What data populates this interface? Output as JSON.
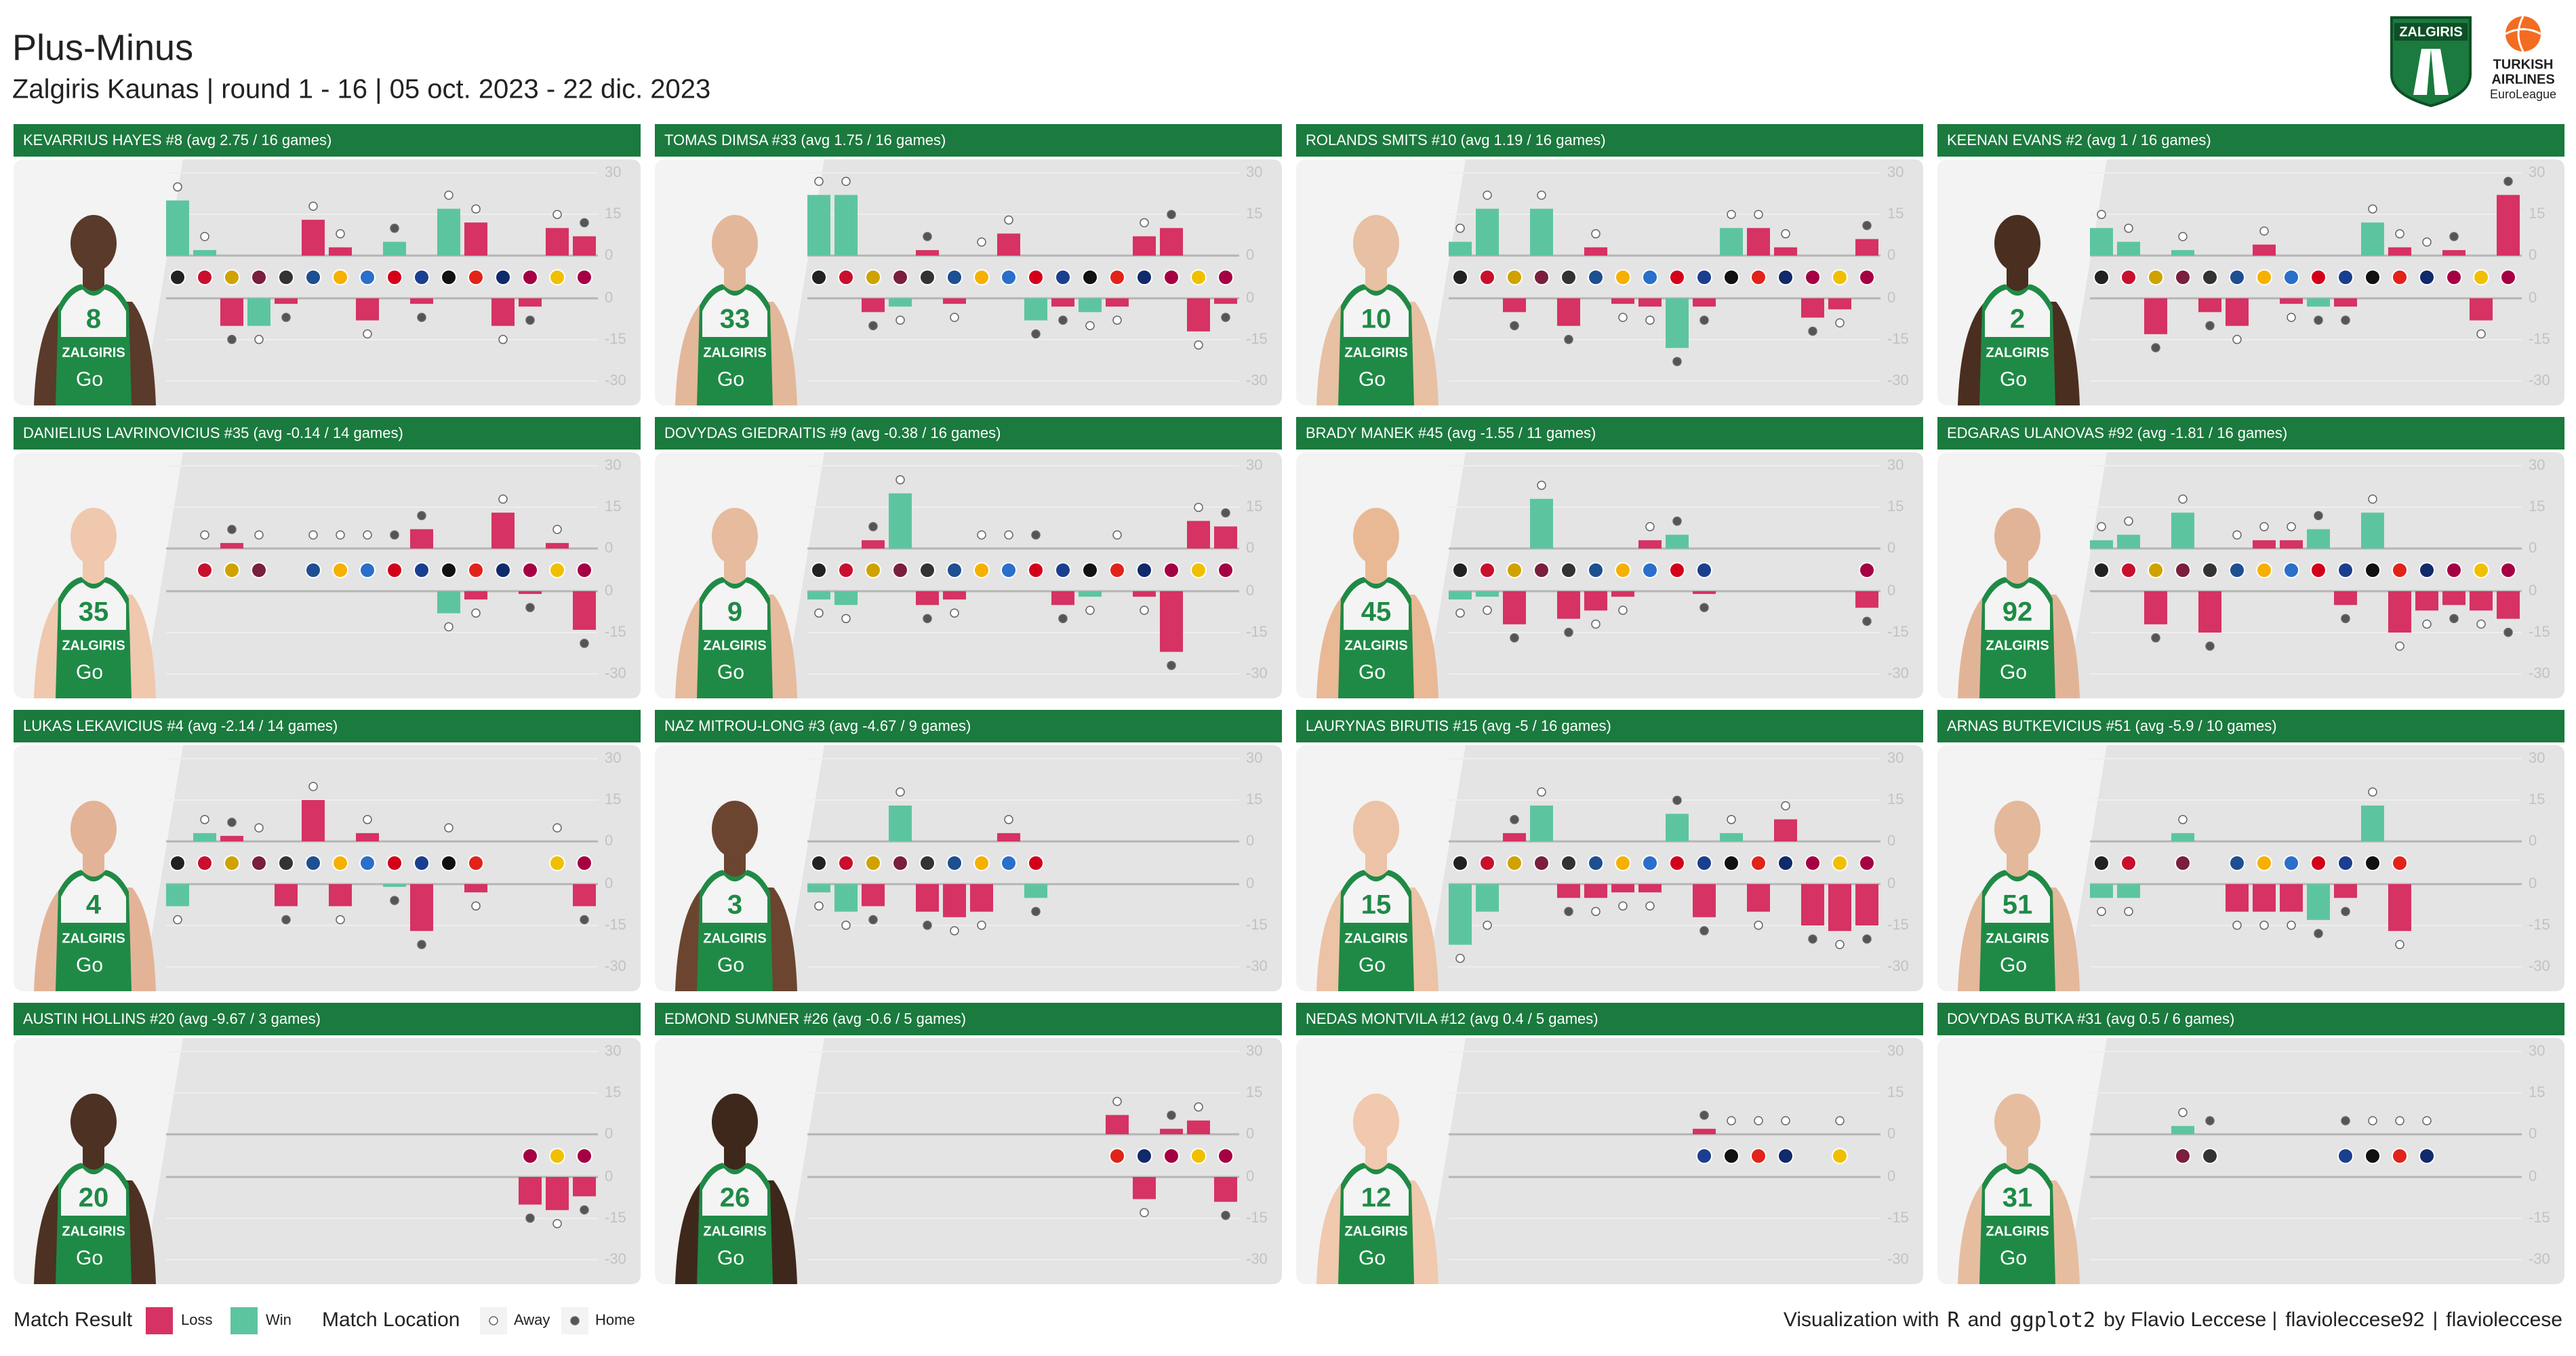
{
  "header": {
    "title": "Plus-Minus",
    "subtitle": "Zalgiris Kaunas | round 1 - 16 | 05 oct. 2023 - 22 dic. 2023"
  },
  "logos": {
    "club": "ZALGIRIS",
    "league": [
      "TURKISH",
      "AIRLINES",
      "EuroLeague"
    ]
  },
  "jersey_brand": "ZALGIRIS",
  "jersey_sponsor": "Go",
  "legend": {
    "result_title": "Match Result",
    "results": [
      {
        "name": "Loss",
        "color": "#d63264"
      },
      {
        "name": "Win",
        "color": "#5cc59f"
      }
    ],
    "location_title": "Match Location",
    "locations": [
      {
        "name": "Away",
        "color": "#ffffff"
      },
      {
        "name": "Home",
        "color": "#555555"
      }
    ]
  },
  "rounds": {
    "result": [
      1,
      1,
      0,
      1,
      0,
      0,
      0,
      0,
      1,
      0,
      1,
      0,
      0,
      0,
      0,
      0
    ],
    "location": [
      0,
      0,
      1,
      0,
      1,
      0,
      0,
      0,
      1,
      1,
      0,
      0,
      0,
      1,
      0,
      1
    ]
  },
  "credit": {
    "text": "Visualization with",
    "tool1": "R",
    "and": "and",
    "tool2": "ggplot2",
    "author": "by Flavio Leccese |",
    "github": "flavioleccese92",
    "sep": "|",
    "linkedin": "flavioleccese"
  },
  "chart_data": [
    {
      "type": "bar",
      "title": "KEVARRIUS HAYES #8 (avg 2.75 / 16 games)",
      "jersey": "8",
      "values": [
        20,
        2,
        -10,
        -10,
        -2,
        13,
        3,
        -8,
        5,
        -2,
        17,
        12,
        -10,
        -3,
        10,
        7
      ],
      "ylim": [
        -30,
        30
      ],
      "yticks": [
        -30,
        -15,
        0,
        15,
        30
      ]
    },
    {
      "type": "bar",
      "title": "TOMAS DIMSA #33 (avg 1.75 / 16 games)",
      "jersey": "33",
      "values": [
        22,
        22,
        -5,
        -3,
        2,
        -2,
        0,
        8,
        -8,
        -3,
        -5,
        -3,
        7,
        10,
        -12,
        -2
      ],
      "ylim": [
        -30,
        30
      ],
      "yticks": [
        -30,
        -15,
        0,
        15,
        30
      ]
    },
    {
      "type": "bar",
      "title": "ROLANDS SMITS #10 (avg 1.19 / 16 games)",
      "jersey": "10",
      "values": [
        5,
        17,
        -5,
        17,
        -10,
        3,
        -2,
        -3,
        -18,
        -3,
        10,
        10,
        3,
        -7,
        -4,
        6
      ],
      "ylim": [
        -30,
        30
      ],
      "yticks": [
        -30,
        -15,
        0,
        15,
        30
      ]
    },
    {
      "type": "bar",
      "title": "KEENAN EVANS #2 (avg 1 / 16 games)",
      "jersey": "2",
      "values": [
        10,
        5,
        -13,
        2,
        -5,
        -10,
        4,
        -2,
        -3,
        -3,
        12,
        3,
        0,
        2,
        -8,
        22
      ],
      "ylim": [
        -30,
        30
      ],
      "yticks": [
        -30,
        -15,
        0,
        15,
        30
      ]
    },
    {
      "type": "bar",
      "title": "DANIELIUS LAVRINOVICIUS #35 (avg -0.14 / 14 games)",
      "jersey": "35",
      "values": [
        null,
        0,
        2,
        0,
        null,
        0,
        0,
        0,
        0,
        7,
        -8,
        -3,
        13,
        -1,
        2,
        -14
      ],
      "ylim": [
        -30,
        30
      ],
      "yticks": [
        -30,
        -15,
        0,
        15,
        30
      ]
    },
    {
      "type": "bar",
      "title": "DOVYDAS GIEDRAITIS #9 (avg -0.38 / 16 games)",
      "jersey": "9",
      "values": [
        -3,
        -5,
        3,
        20,
        -5,
        -3,
        0,
        0,
        0,
        -5,
        -2,
        0,
        -2,
        -22,
        10,
        8
      ],
      "ylim": [
        -30,
        30
      ],
      "yticks": [
        -30,
        -15,
        0,
        15,
        30
      ]
    },
    {
      "type": "bar",
      "title": "BRADY MANEK #45 (avg -1.55 / 11 games)",
      "jersey": "45",
      "values": [
        -3,
        -2,
        -12,
        18,
        -10,
        -7,
        -2,
        3,
        5,
        -1,
        null,
        null,
        null,
        null,
        null,
        -6
      ],
      "ylim": [
        -30,
        30
      ],
      "yticks": [
        -30,
        -15,
        0,
        15,
        30
      ]
    },
    {
      "type": "bar",
      "title": "EDGARAS ULANOVAS #92 (avg -1.81 / 16 games)",
      "jersey": "92",
      "values": [
        3,
        5,
        -12,
        13,
        -15,
        0,
        3,
        3,
        7,
        -5,
        13,
        -15,
        -7,
        -5,
        -7,
        -10
      ],
      "ylim": [
        -30,
        30
      ],
      "yticks": [
        -30,
        -15,
        0,
        15,
        30
      ]
    },
    {
      "type": "bar",
      "title": "LUKAS LEKAVICIUS #4 (avg -2.14 / 14 games)",
      "jersey": "4",
      "values": [
        -8,
        3,
        2,
        0,
        -8,
        15,
        -8,
        3,
        -1,
        -17,
        0,
        -3,
        null,
        null,
        0,
        -8
      ],
      "ylim": [
        -30,
        30
      ],
      "yticks": [
        -30,
        -15,
        0,
        15,
        30
      ]
    },
    {
      "type": "bar",
      "title": "NAZ MITROU-LONG #3 (avg -4.67 / 9 games)",
      "jersey": "3",
      "values": [
        -3,
        -10,
        -8,
        13,
        -10,
        -12,
        -10,
        3,
        -5,
        null,
        null,
        null,
        null,
        null,
        null,
        null
      ],
      "ylim": [
        -30,
        30
      ],
      "yticks": [
        -30,
        -15,
        0,
        15,
        30
      ]
    },
    {
      "type": "bar",
      "title": "LAURYNAS BIRUTIS #15 (avg -5 / 16 games)",
      "jersey": "15",
      "values": [
        -22,
        -10,
        3,
        13,
        -5,
        -5,
        -3,
        -3,
        10,
        -12,
        3,
        -10,
        8,
        -15,
        -17,
        -15
      ],
      "ylim": [
        -30,
        30
      ],
      "yticks": [
        -30,
        -15,
        0,
        15,
        30
      ]
    },
    {
      "type": "bar",
      "title": "ARNAS BUTKEVICIUS #51 (avg -5.9 / 10 games)",
      "jersey": "51",
      "values": [
        -5,
        -5,
        null,
        3,
        null,
        -10,
        -10,
        -10,
        -13,
        -5,
        13,
        -17,
        null,
        null,
        null,
        null
      ],
      "ylim": [
        -30,
        30
      ],
      "yticks": [
        -30,
        -15,
        0,
        15,
        30
      ]
    },
    {
      "type": "bar",
      "title": "AUSTIN HOLLINS #20 (avg -9.67 / 3 games)",
      "jersey": "20",
      "values": [
        null,
        null,
        null,
        null,
        null,
        null,
        null,
        null,
        null,
        null,
        null,
        null,
        null,
        -10,
        -12,
        -7
      ],
      "ylim": [
        -30,
        30
      ],
      "yticks": [
        -30,
        -15,
        0,
        15,
        30
      ]
    },
    {
      "type": "bar",
      "title": "EDMOND SUMNER #26 (avg -0.6 / 5 games)",
      "jersey": "26",
      "values": [
        null,
        null,
        null,
        null,
        null,
        null,
        null,
        null,
        null,
        null,
        null,
        7,
        -8,
        2,
        5,
        -9
      ],
      "ylim": [
        -30,
        30
      ],
      "yticks": [
        -30,
        -15,
        0,
        15,
        30
      ]
    },
    {
      "type": "bar",
      "title": "NEDAS MONTVILA #12 (avg 0.4 / 5 games)",
      "jersey": "12",
      "values": [
        null,
        null,
        null,
        null,
        null,
        null,
        null,
        null,
        null,
        2,
        0,
        0,
        0,
        null,
        0,
        null
      ],
      "ylim": [
        -30,
        30
      ],
      "yticks": [
        -30,
        -15,
        0,
        15,
        30
      ]
    },
    {
      "type": "bar",
      "title": "DOVYDAS BUTKA #31 (avg 0.5 / 6 games)",
      "jersey": "31",
      "values": [
        null,
        null,
        null,
        3,
        0,
        null,
        null,
        null,
        null,
        0,
        0,
        0,
        0,
        null,
        null,
        null
      ],
      "ylim": [
        -30,
        30
      ],
      "yticks": [
        -30,
        -15,
        0,
        15,
        30
      ]
    }
  ]
}
